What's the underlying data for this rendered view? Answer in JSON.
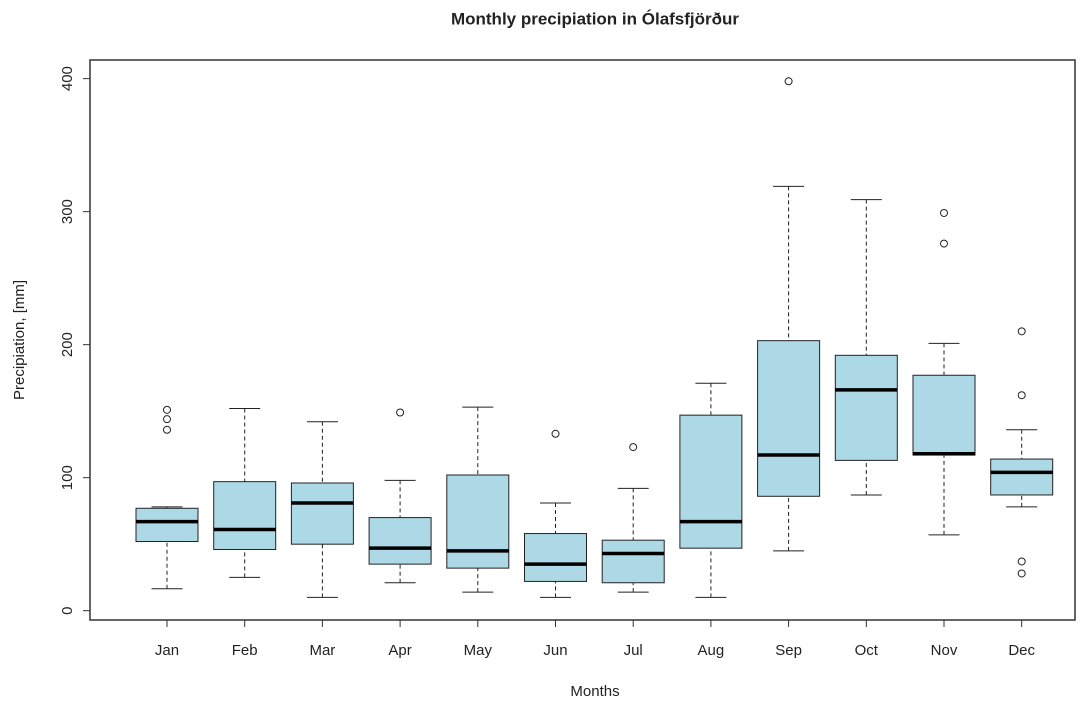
{
  "chart_data": {
    "type": "box",
    "title": "Monthly precipiation in Ólafsfjörður",
    "x_label": "Months",
    "y_label": "Precipiation, [mm]",
    "color": "#add8e6",
    "categories": [
      "Jan",
      "Feb",
      "Mar",
      "Apr",
      "May",
      "Jun",
      "Jul",
      "Aug",
      "Sep",
      "Oct",
      "Nov",
      "Dec"
    ],
    "boxes": [
      {
        "low": 16.5,
        "q1": 52,
        "median": 67,
        "q3": 77,
        "high": 78,
        "outliers": [
          151,
          144,
          136
        ]
      },
      {
        "low": 25,
        "q1": 46,
        "median": 61,
        "q3": 97,
        "high": 152,
        "outliers": []
      },
      {
        "low": 10,
        "q1": 50,
        "median": 81,
        "q3": 96,
        "high": 142,
        "outliers": []
      },
      {
        "low": 21,
        "q1": 35,
        "median": 47,
        "q3": 70,
        "high": 98,
        "outliers": [
          149
        ]
      },
      {
        "low": 14,
        "q1": 32,
        "median": 45,
        "q3": 102,
        "high": 153,
        "outliers": []
      },
      {
        "low": 10,
        "q1": 22,
        "median": 35,
        "q3": 58,
        "high": 81,
        "outliers": [
          133
        ]
      },
      {
        "low": 14,
        "q1": 21,
        "median": 43,
        "q3": 53,
        "high": 92,
        "outliers": [
          123
        ]
      },
      {
        "low": 10,
        "q1": 47,
        "median": 67,
        "q3": 147,
        "high": 171,
        "outliers": []
      },
      {
        "low": 45,
        "q1": 86,
        "median": 117,
        "q3": 203,
        "high": 319,
        "outliers": [
          398
        ]
      },
      {
        "low": 87,
        "q1": 113,
        "median": 166,
        "q3": 192,
        "high": 309,
        "outliers": []
      },
      {
        "low": 57,
        "q1": 117,
        "median": 118,
        "q3": 177,
        "high": 201,
        "outliers": [
          276,
          299
        ]
      },
      {
        "low": 78,
        "q1": 87,
        "median": 104,
        "q3": 114,
        "high": 136,
        "outliers": [
          210,
          162,
          37,
          28
        ]
      }
    ],
    "ylim": [
      -7,
      414
    ],
    "yticks": [
      0,
      100,
      200,
      300,
      400
    ]
  }
}
